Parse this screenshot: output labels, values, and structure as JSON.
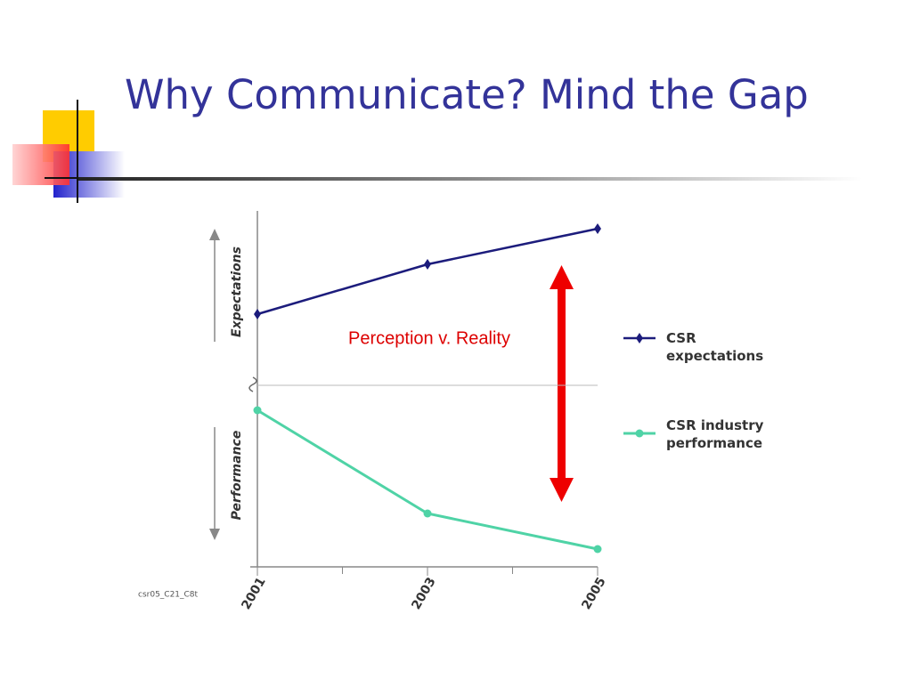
{
  "title": "Why Communicate?  Mind the Gap",
  "chart_data": {
    "type": "line",
    "x": [
      2001,
      2003,
      2005
    ],
    "xlim": [
      2001,
      2005
    ],
    "xticks": [
      2001,
      2003,
      2005
    ],
    "ylim": [
      0,
      100
    ],
    "y_labels": [
      "Expectations",
      "Performance"
    ],
    "series": [
      {
        "name": "CSR expectations",
        "color": "#1c1c7c",
        "values": [
          71,
          85,
          95
        ]
      },
      {
        "name": "CSR industry performance",
        "color": "#4fd3a6",
        "values": [
          44,
          15,
          5
        ]
      }
    ],
    "annotation": "Perception v. Reality",
    "source": "csr05_C21_C8t",
    "legend": "right"
  }
}
